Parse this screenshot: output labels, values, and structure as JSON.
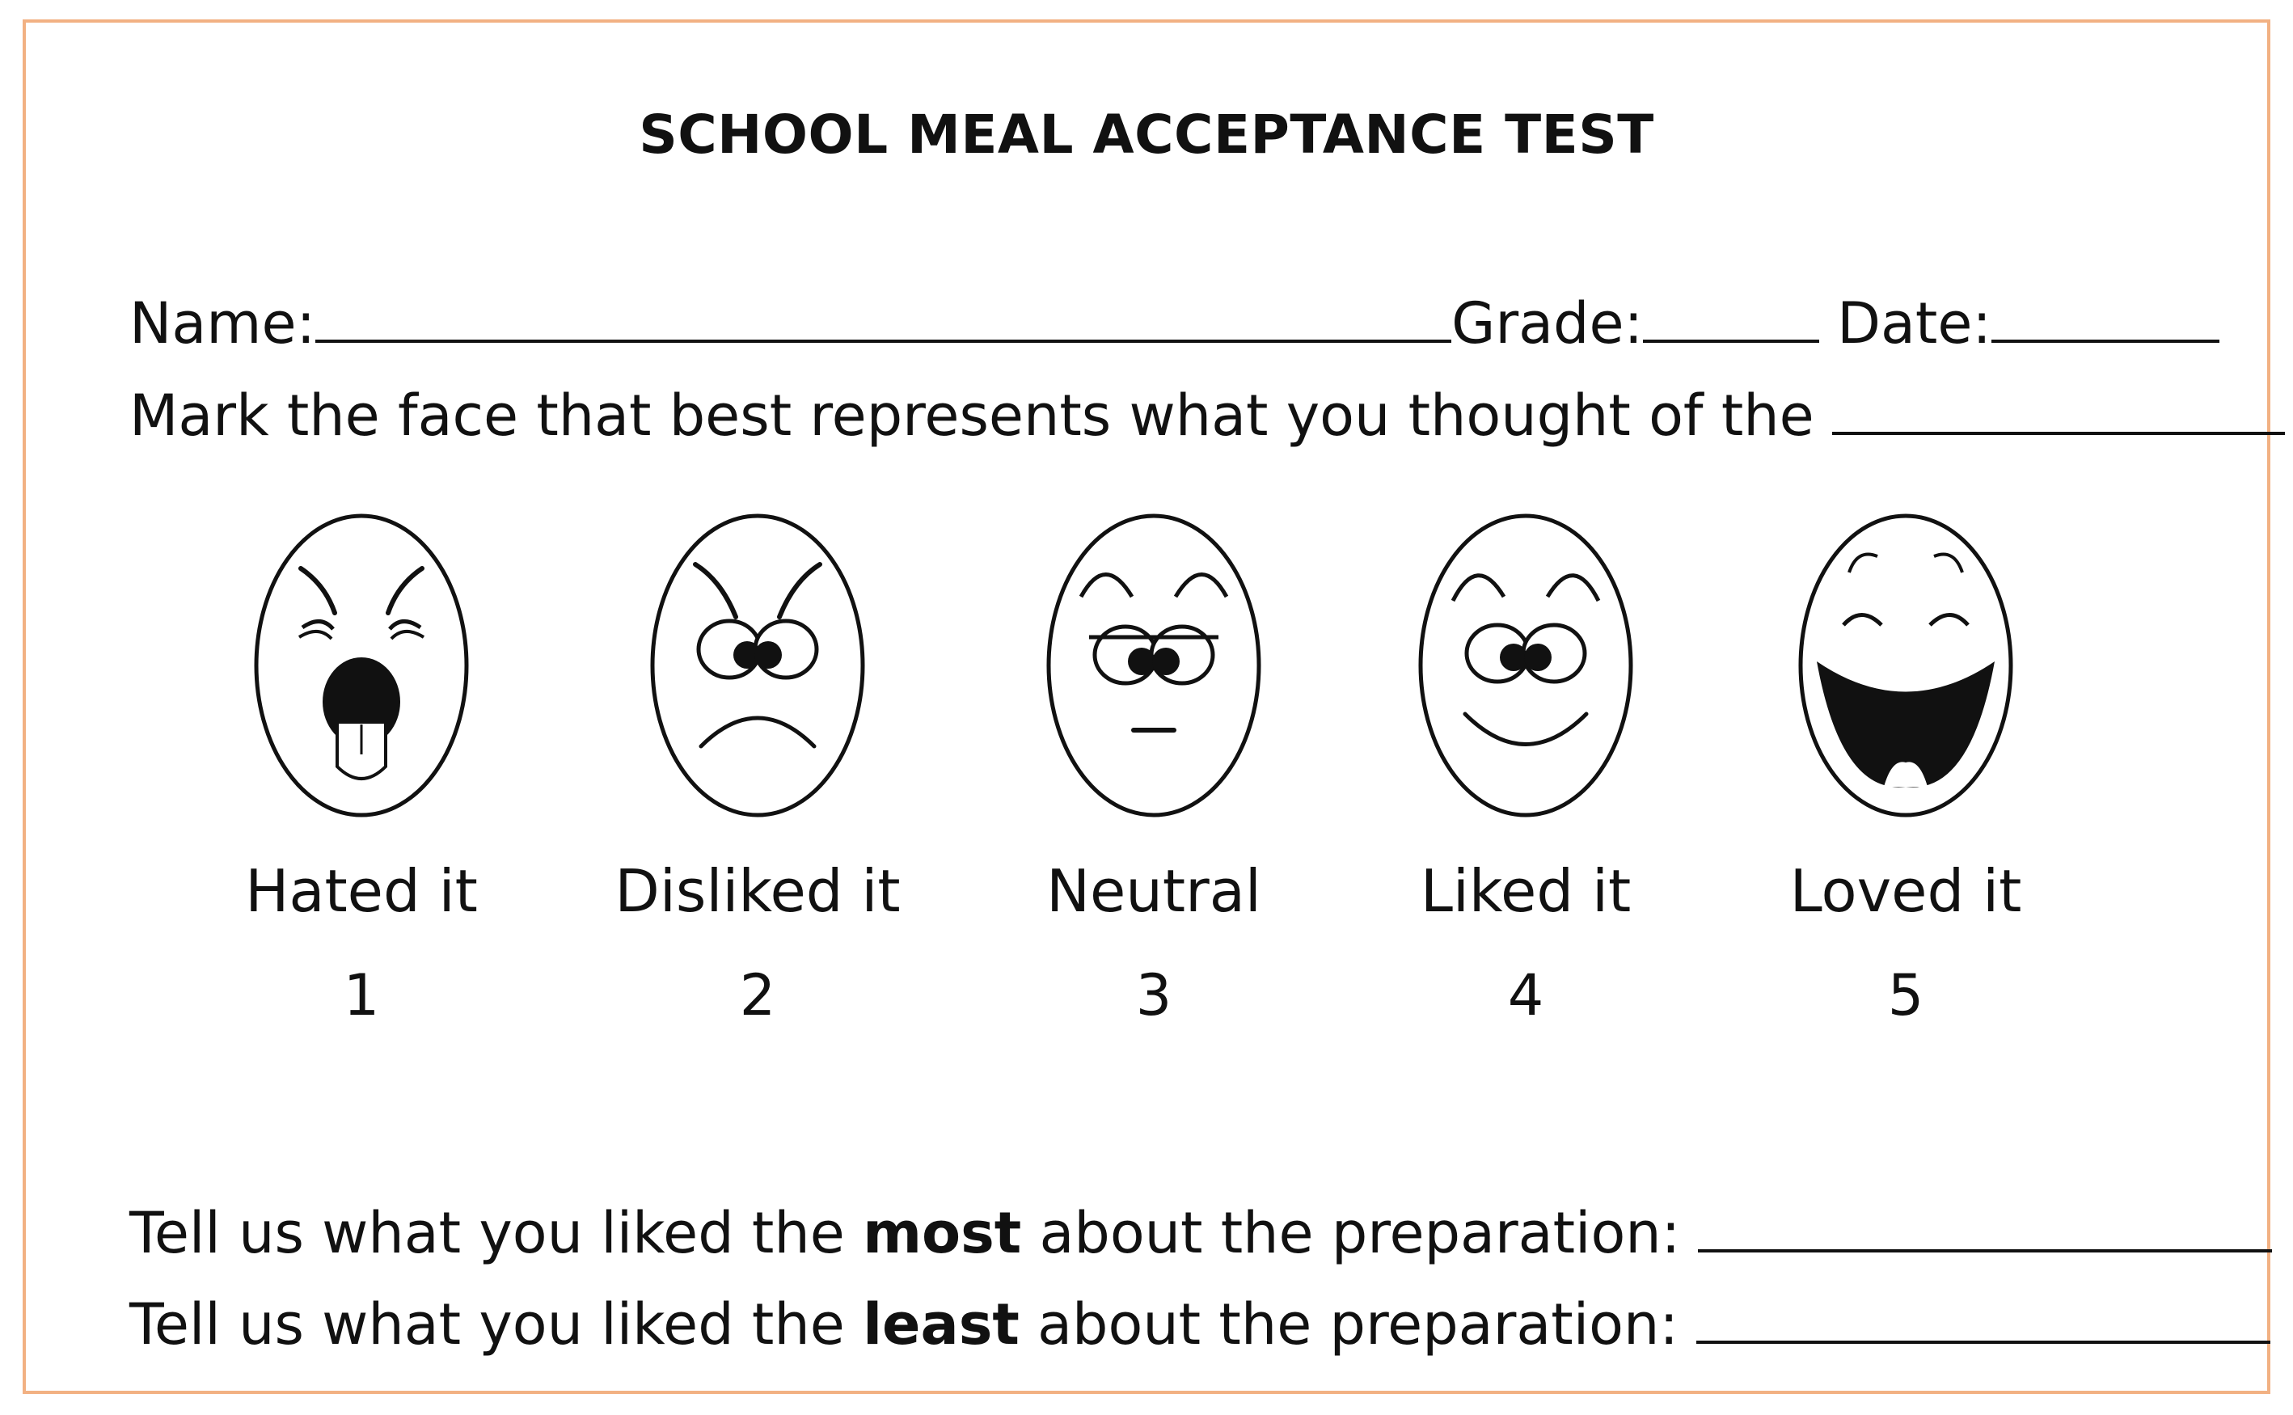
{
  "title": "SCHOOL MEAL ACCEPTANCE TEST",
  "fields": {
    "name_label": "Name:",
    "grade_label": "Grade:",
    "date_label": "Date:"
  },
  "instruction": "Mark the face that best represents what you thought of the",
  "scale": [
    {
      "icon": "hated-face-icon",
      "label": "Hated it",
      "value": "1"
    },
    {
      "icon": "disliked-face-icon",
      "label": "Disliked it",
      "value": "2"
    },
    {
      "icon": "neutral-face-icon",
      "label": "Neutral",
      "value": "3"
    },
    {
      "icon": "liked-face-icon",
      "label": "Liked it",
      "value": "4"
    },
    {
      "icon": "loved-face-icon",
      "label": "Loved it",
      "value": "5"
    }
  ],
  "questions": {
    "most": {
      "prefix": "Tell us what you liked the ",
      "emphasis": "most",
      "suffix": " about the preparation:"
    },
    "least": {
      "prefix": "Tell us what you liked the ",
      "emphasis": "least",
      "suffix": " about the preparation:"
    }
  },
  "colors": {
    "border": "#f2b183",
    "ink": "#111111"
  }
}
